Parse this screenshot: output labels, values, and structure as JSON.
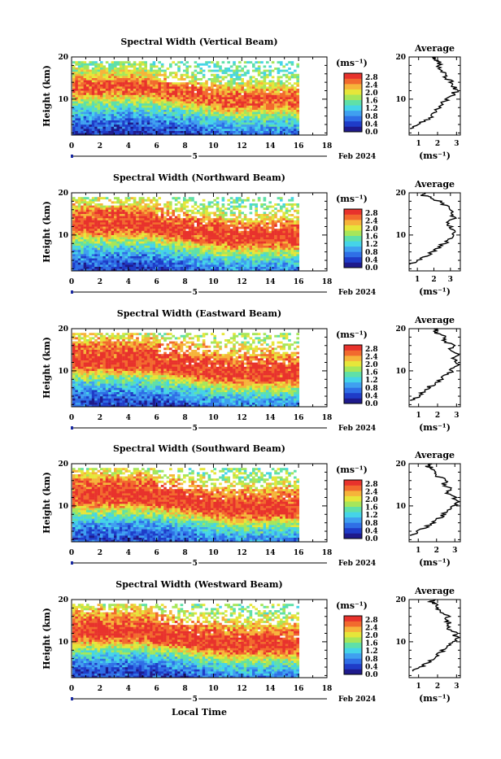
{
  "figure": {
    "xlabel": "Local Time",
    "date_label": "Feb 2024",
    "day_label": "5",
    "units": "(ms⁻¹)",
    "avg_title": "Average",
    "avg_xlabel": "(ms⁻¹)"
  },
  "panels": [
    {
      "title": "Spectral Width (Vertical Beam)",
      "ylabel": "Height (km)"
    },
    {
      "title": "Spectral Width (Northward Beam)",
      "ylabel": "Height (km)"
    },
    {
      "title": "Spectral Width (Eastward Beam)",
      "ylabel": "Height (km)"
    },
    {
      "title": "Spectral Width (Southward Beam)",
      "ylabel": "Height (km)"
    },
    {
      "title": "Spectral Width (Westward Beam)",
      "ylabel": "Height (km)"
    }
  ],
  "x_ticks": [
    "0",
    "2",
    "4",
    "6",
    "8",
    "10",
    "12",
    "14",
    "16",
    "18"
  ],
  "y_ticks": [
    "10",
    "20"
  ],
  "colorbar_ticks": [
    "0.0",
    "0.4",
    "0.8",
    "1.2",
    "1.6",
    "2.0",
    "2.4",
    "2.8"
  ],
  "avg_x_tick_sets": [
    [
      "1",
      "2",
      "3"
    ],
    [
      "1",
      "2",
      "3"
    ],
    [
      "1",
      "2",
      "3"
    ],
    [
      "1",
      "2",
      "3"
    ],
    [
      "1",
      "2",
      "3"
    ]
  ],
  "colors": {
    "colormap": [
      "#1e1a8c",
      "#1f3cc8",
      "#2f6fe6",
      "#3fa0f0",
      "#45d4e8",
      "#5fe0a8",
      "#a6e65a",
      "#e6e63a",
      "#f6b43a",
      "#f26a2e",
      "#e8322c"
    ],
    "missing": "#ffffff",
    "line": "#000000"
  },
  "chart_data": [
    {
      "type": "heatmap",
      "title": "Spectral Width (Vertical Beam)",
      "xlabel": "",
      "ylabel": "Height (km)",
      "xlim": [
        0,
        18
      ],
      "ylim": [
        1.5,
        20
      ],
      "colorbar": {
        "label": "(ms⁻¹)",
        "range": [
          0.0,
          3.0
        ]
      },
      "data_extent_hours": [
        0,
        16
      ],
      "profile": [
        [
          2,
          0.2
        ],
        [
          4,
          0.5
        ],
        [
          6,
          0.9
        ],
        [
          8,
          1.4
        ],
        [
          9,
          1.7
        ],
        [
          10,
          2.1
        ],
        [
          11,
          2.5
        ],
        [
          12,
          2.8
        ],
        [
          13,
          2.9
        ],
        [
          14,
          2.7
        ],
        [
          15,
          2.4
        ],
        [
          16,
          2.1
        ],
        [
          17,
          1.9
        ],
        [
          18,
          1.7
        ],
        [
          19,
          1.6
        ],
        [
          20,
          1.5
        ]
      ],
      "average_profile": {
        "x": [
          0.6,
          1.0,
          1.4,
          1.7,
          1.9,
          2.1,
          2.2,
          2.5,
          2.8,
          3.0,
          2.9,
          2.7,
          2.5,
          2.3,
          2.2,
          2.1,
          2.0,
          1.9,
          1.8
        ],
        "height_km": [
          3,
          4,
          5,
          6,
          7,
          8,
          9,
          10,
          11,
          12,
          13,
          14,
          15,
          16,
          17,
          18,
          19,
          19.5,
          20
        ],
        "xlim": [
          0.5,
          3.2
        ]
      }
    },
    {
      "type": "heatmap",
      "title": "Spectral Width (Northward Beam)",
      "xlabel": "",
      "ylabel": "Height (km)",
      "xlim": [
        0,
        18
      ],
      "ylim": [
        1.5,
        20
      ],
      "colorbar": {
        "label": "(ms⁻¹)",
        "range": [
          0.0,
          3.0
        ]
      },
      "data_extent_hours": [
        0,
        16
      ],
      "profile": [
        [
          2,
          0.3
        ],
        [
          4,
          0.6
        ],
        [
          6,
          1.0
        ],
        [
          8,
          1.6
        ],
        [
          9,
          1.9
        ],
        [
          10,
          2.4
        ],
        [
          11,
          2.8
        ],
        [
          12,
          3.0
        ],
        [
          13,
          3.0
        ],
        [
          14,
          2.9
        ],
        [
          15,
          2.8
        ],
        [
          16,
          2.5
        ],
        [
          17,
          2.2
        ],
        [
          18,
          2.0
        ],
        [
          19,
          1.8
        ],
        [
          20,
          1.6
        ]
      ],
      "average_profile": {
        "x": [
          0.5,
          1.0,
          1.5,
          1.9,
          2.3,
          2.6,
          3.0,
          3.3,
          3.2,
          3.0,
          2.8,
          3.3,
          2.9,
          3.1,
          2.7,
          2.3,
          1.8,
          1.2,
          1.5
        ],
        "height_km": [
          3,
          4,
          5,
          6,
          7,
          8,
          9,
          10,
          11,
          12,
          13,
          14,
          15,
          16,
          17,
          18,
          19,
          19.5,
          20
        ],
        "xlim": [
          0.5,
          3.6
        ]
      }
    },
    {
      "type": "heatmap",
      "title": "Spectral Width (Eastward Beam)",
      "xlabel": "",
      "ylabel": "Height (km)",
      "xlim": [
        0,
        18
      ],
      "ylim": [
        1.5,
        20
      ],
      "colorbar": {
        "label": "(ms⁻¹)",
        "range": [
          0.0,
          3.0
        ]
      },
      "data_extent_hours": [
        0,
        16
      ],
      "profile": [
        [
          2,
          0.4
        ],
        [
          3,
          0.3
        ],
        [
          4,
          0.6
        ],
        [
          6,
          1.0
        ],
        [
          8,
          1.6
        ],
        [
          9,
          2.0
        ],
        [
          10,
          2.5
        ],
        [
          11,
          2.9
        ],
        [
          12,
          3.0
        ],
        [
          13,
          3.0
        ],
        [
          14,
          2.9
        ],
        [
          15,
          2.8
        ],
        [
          16,
          2.6
        ],
        [
          17,
          2.4
        ],
        [
          18,
          2.2
        ],
        [
          19,
          2.0
        ],
        [
          20,
          1.8
        ]
      ],
      "average_profile": {
        "x": [
          0.7,
          1.0,
          1.3,
          1.5,
          1.8,
          2.2,
          2.5,
          2.7,
          2.9,
          3.1,
          2.8,
          3.0,
          2.6,
          2.8,
          2.4,
          2.5,
          2.0,
          1.8,
          2.0
        ],
        "height_km": [
          3,
          4,
          5,
          6,
          7,
          8,
          9,
          10,
          11,
          12,
          13,
          14,
          15,
          16,
          17,
          18,
          19,
          19.5,
          20
        ],
        "xlim": [
          0.5,
          3.2
        ]
      }
    },
    {
      "type": "heatmap",
      "title": "Spectral Width (Southward Beam)",
      "xlabel": "",
      "ylabel": "Height (km)",
      "xlim": [
        0,
        18
      ],
      "ylim": [
        1.5,
        20
      ],
      "colorbar": {
        "label": "(ms⁻¹)",
        "range": [
          0.0,
          3.0
        ]
      },
      "data_extent_hours": [
        0,
        16
      ],
      "profile": [
        [
          2,
          0.4
        ],
        [
          4,
          0.6
        ],
        [
          6,
          1.0
        ],
        [
          8,
          1.6
        ],
        [
          9,
          2.0
        ],
        [
          10,
          2.5
        ],
        [
          11,
          2.9
        ],
        [
          12,
          3.0
        ],
        [
          13,
          3.0
        ],
        [
          14,
          2.9
        ],
        [
          15,
          2.8
        ],
        [
          16,
          2.6
        ],
        [
          17,
          2.3
        ],
        [
          18,
          2.1
        ],
        [
          19,
          1.9
        ],
        [
          20,
          1.7
        ]
      ],
      "average_profile": {
        "x": [
          0.6,
          1.0,
          1.4,
          1.8,
          2.1,
          2.4,
          2.6,
          2.9,
          3.2,
          3.0,
          2.6,
          2.8,
          2.4,
          2.5,
          2.1,
          1.9,
          1.7,
          1.5,
          1.6
        ],
        "height_km": [
          3,
          4,
          5,
          6,
          7,
          8,
          9,
          10,
          11,
          12,
          13,
          14,
          15,
          16,
          17,
          18,
          19,
          19.5,
          20
        ],
        "xlim": [
          0.5,
          3.3
        ]
      }
    },
    {
      "type": "heatmap",
      "title": "Spectral Width (Westward Beam)",
      "xlabel": "Local Time",
      "ylabel": "Height (km)",
      "xlim": [
        0,
        18
      ],
      "ylim": [
        1.5,
        20
      ],
      "colorbar": {
        "label": "(ms⁻¹)",
        "range": [
          0.0,
          3.0
        ]
      },
      "data_extent_hours": [
        0,
        16
      ],
      "profile": [
        [
          2,
          0.4
        ],
        [
          3,
          0.3
        ],
        [
          4,
          0.6
        ],
        [
          6,
          1.0
        ],
        [
          8,
          1.6
        ],
        [
          9,
          2.0
        ],
        [
          10,
          2.5
        ],
        [
          11,
          2.9
        ],
        [
          12,
          3.0
        ],
        [
          13,
          3.0
        ],
        [
          14,
          2.9
        ],
        [
          15,
          2.7
        ],
        [
          16,
          2.5
        ],
        [
          17,
          2.3
        ],
        [
          18,
          2.1
        ],
        [
          19,
          1.9
        ],
        [
          20,
          1.7
        ]
      ],
      "average_profile": {
        "x": [
          0.7,
          1.1,
          1.4,
          1.7,
          2.0,
          2.3,
          2.6,
          2.8,
          3.0,
          2.9,
          2.6,
          2.7,
          2.4,
          2.6,
          2.2,
          2.0,
          1.8,
          1.6,
          1.9
        ],
        "height_km": [
          3,
          4,
          5,
          6,
          7,
          8,
          9,
          10,
          11,
          12,
          13,
          14,
          15,
          16,
          17,
          18,
          19,
          19.5,
          20
        ],
        "xlim": [
          0.5,
          3.2
        ]
      }
    }
  ]
}
